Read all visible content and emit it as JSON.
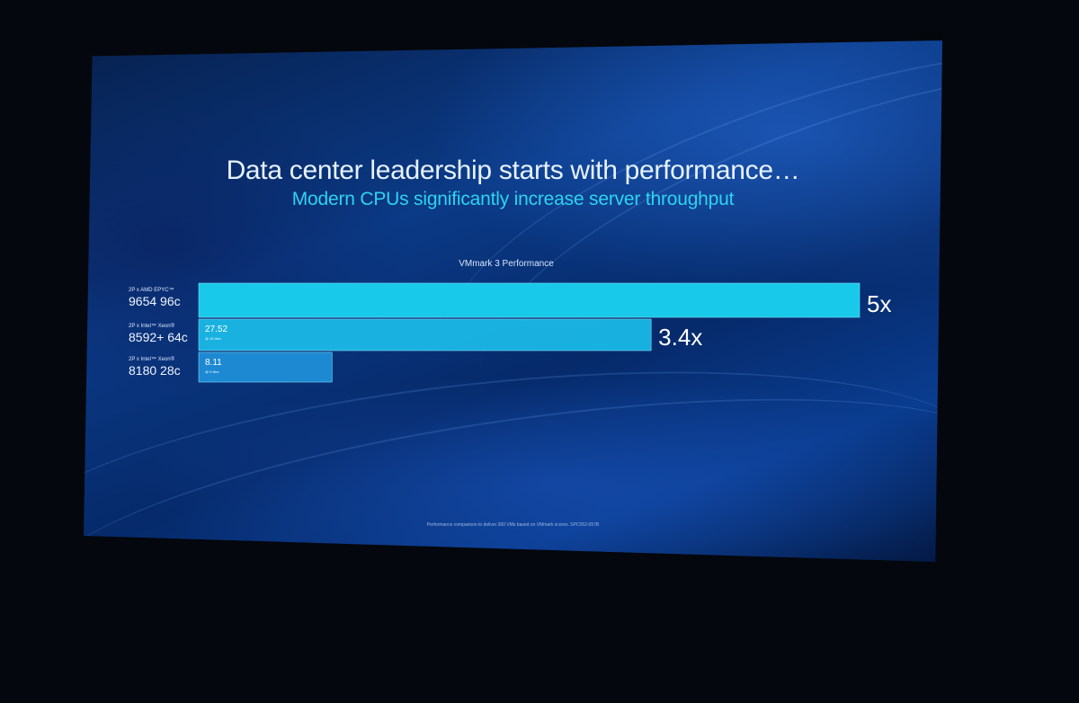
{
  "slide": {
    "title": "Data center leadership starts with performance…",
    "subtitle": "Modern CPUs significantly increase server throughput",
    "footnote": "Performance comparison to deliver 300 VMs based on VMmark scores. SPC052-057B"
  },
  "colors": {
    "bar_main": "#19d2f0",
    "bar_mid": "#1ab8e6",
    "bar_low": "#1f8ed8",
    "title": "#e6f2ff",
    "subtitle": "#2ed3f0"
  },
  "chart_data": {
    "type": "bar",
    "orientation": "horizontal",
    "title": "VMmark 3 Performance",
    "categories": [
      {
        "prefix": "2P x AMD EPYC™",
        "name": "9654 96c"
      },
      {
        "prefix": "2P x Intel™ Xeon®",
        "name": "8592+ 64c"
      },
      {
        "prefix": "2P x Intel™ Xeon®",
        "name": "8180 28c"
      }
    ],
    "values": [
      40.2,
      27.52,
      8.11
    ],
    "value_labels": [
      "",
      "27.52",
      "8.11"
    ],
    "sub_labels": [
      "",
      "@ 28 tiles",
      "@ 9 tiles"
    ],
    "multipliers": [
      "5x",
      "3.4x",
      ""
    ],
    "xlim": [
      0,
      40.2
    ],
    "grid": false,
    "legend": "none"
  }
}
